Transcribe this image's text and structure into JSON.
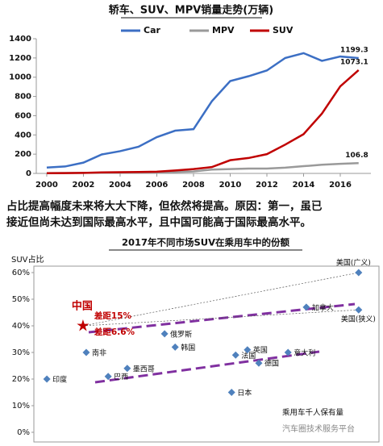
{
  "chart_data": [
    {
      "type": "line",
      "title": "轿车、SUV、MPV销量走势(万辆)",
      "x": [
        2000,
        2001,
        2002,
        2003,
        2004,
        2005,
        2006,
        2007,
        2008,
        2009,
        2010,
        2011,
        2012,
        2013,
        2014,
        2015,
        2016,
        2017
      ],
      "xlim": [
        1999.43,
        2017.67
      ],
      "xticks": [
        2000,
        2002,
        2004,
        2006,
        2008,
        2010,
        2012,
        2014,
        2016
      ],
      "ylim": [
        0,
        1400
      ],
      "yticks": [
        0,
        200,
        400,
        600,
        800,
        1000,
        1200,
        1400
      ],
      "series": [
        {
          "name": "Car",
          "color": "#3c6fc4",
          "values": [
            61,
            72,
            112,
            197,
            231,
            277,
            377,
            444,
            460,
            750,
            960,
            1010,
            1070,
            1200,
            1250,
            1170,
            1215,
            1199.3
          ]
        },
        {
          "name": "MPV",
          "color": "#9a9a9a",
          "values": [
            3,
            4,
            5,
            6,
            8,
            10,
            12,
            15,
            20,
            40,
            45,
            50,
            50,
            60,
            75,
            90,
            100,
            106.8
          ]
        },
        {
          "name": "SUV",
          "color": "#c00000",
          "values": [
            2,
            3,
            5,
            10,
            13,
            15,
            18,
            30,
            45,
            66,
            137,
            160,
            200,
            299,
            408,
            622,
            905,
            1073.1
          ]
        }
      ]
    },
    {
      "type": "scatter",
      "title": "2017年不同市场SUV在乘用车中的份额",
      "ylabel": "SUV占比",
      "xlabel": "乘用车千人保有量",
      "color": "#4f81bd",
      "labels": [
        "印度",
        "南非",
        "巴西",
        "墨西哥",
        "俄罗斯",
        "韩国",
        "日本",
        "法国",
        "英国",
        "德国",
        "意大利",
        "加拿大",
        "美国(狭义)",
        "美国(广义)"
      ],
      "x": [
        12,
        109,
        163,
        210,
        302,
        328,
        467,
        477,
        506,
        534,
        606,
        651,
        780,
        780
      ],
      "values": [
        20,
        30,
        21,
        24,
        37,
        32,
        15,
        29,
        31,
        26,
        30,
        47,
        46,
        60
      ],
      "xlim": [
        -20,
        830
      ],
      "ylim": [
        0,
        60
      ],
      "yticks": [
        {
          "value": 0,
          "label": "0%"
        },
        {
          "value": 10,
          "label": "10%"
        },
        {
          "value": 20,
          "label": "20%"
        },
        {
          "value": 30,
          "label": "30%"
        },
        {
          "value": 40,
          "label": "40%"
        },
        {
          "value": 50,
          "label": "50%"
        },
        {
          "value": 60,
          "label": "60%"
        }
      ],
      "highlight": {
        "label": "中国",
        "x": 101,
        "value": 40,
        "color": "#c00000"
      },
      "annotations": [
        "差距15%",
        "差距6.6%"
      ]
    }
  ],
  "commentary": [
    "占比提高幅度未来将大大下降，但依然将提高。原因：第一，虽已",
    "接近但尚未达到国际最高水平，且中国可能高于国际最高水平。"
  ],
  "watermark": "汽车圈技术服务平台"
}
